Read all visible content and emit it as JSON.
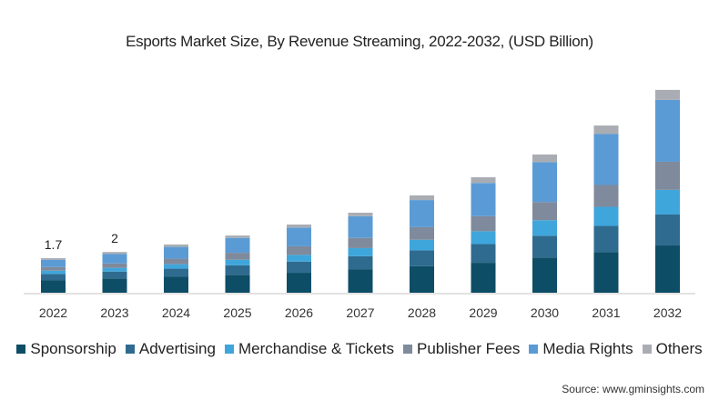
{
  "chart_data": {
    "type": "bar",
    "stacked": true,
    "title": "Esports Market Size, By Revenue Streaming, 2022-2032, (USD Billion)",
    "xlabel": "",
    "ylabel": "",
    "ylim": [
      0,
      10.5
    ],
    "grid": false,
    "legend_position": "bottom",
    "categories": [
      "2022",
      "2023",
      "2024",
      "2025",
      "2026",
      "2027",
      "2028",
      "2029",
      "2030",
      "2031",
      "2032"
    ],
    "series": [
      {
        "name": "Sponsorship",
        "color": "#0d4d66",
        "values": [
          0.62,
          0.7,
          0.78,
          0.88,
          0.98,
          1.14,
          1.3,
          1.47,
          1.73,
          1.99,
          2.32
        ]
      },
      {
        "name": "Advertising",
        "color": "#2f6b8f",
        "values": [
          0.3,
          0.34,
          0.4,
          0.47,
          0.55,
          0.65,
          0.78,
          0.92,
          1.07,
          1.29,
          1.52
        ]
      },
      {
        "name": "Merchandise & Tickets",
        "color": "#3fa6dc",
        "values": [
          0.16,
          0.18,
          0.22,
          0.27,
          0.33,
          0.4,
          0.52,
          0.63,
          0.76,
          0.94,
          1.21
        ]
      },
      {
        "name": "Publisher Fees",
        "color": "#7f8a9c",
        "values": [
          0.18,
          0.22,
          0.27,
          0.34,
          0.42,
          0.5,
          0.62,
          0.74,
          0.89,
          1.07,
          1.38
        ]
      },
      {
        "name": "Media Rights",
        "color": "#5b9bd5",
        "values": [
          0.36,
          0.46,
          0.58,
          0.73,
          0.92,
          1.07,
          1.33,
          1.63,
          1.96,
          2.5,
          3.04
        ]
      },
      {
        "name": "Others",
        "color": "#a9adb3",
        "values": [
          0.08,
          0.1,
          0.12,
          0.12,
          0.15,
          0.17,
          0.23,
          0.28,
          0.38,
          0.42,
          0.49
        ]
      }
    ],
    "data_labels": [
      {
        "category": "2022",
        "text": "1.7"
      },
      {
        "category": "2023",
        "text": "2"
      }
    ]
  },
  "legend": [
    {
      "label": "Sponsorship",
      "color": "#0d4d66"
    },
    {
      "label": "Advertising",
      "color": "#2f6b8f"
    },
    {
      "label": "Merchandise & Tickets",
      "color": "#3fa6dc"
    },
    {
      "label": "Publisher Fees",
      "color": "#7f8a9c"
    },
    {
      "label": "Media Rights",
      "color": "#5b9bd5"
    },
    {
      "label": "Others",
      "color": "#a9adb3"
    }
  ],
  "source": "Source: www.gminsights.com"
}
